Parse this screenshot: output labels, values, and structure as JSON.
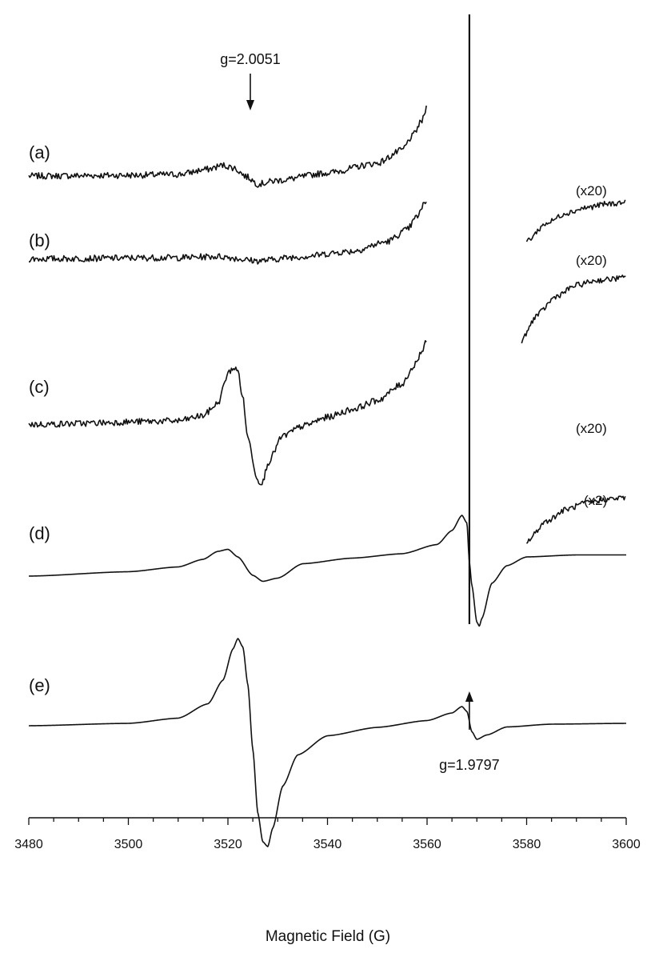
{
  "chart_data": {
    "type": "line",
    "title": "",
    "xlabel": "Magnetic Field (G)",
    "ylabel": "",
    "xlim": [
      3480,
      3600
    ],
    "x_ticks": [
      "3480",
      "3500",
      "3520",
      "3540",
      "3560",
      "3580",
      "3600"
    ],
    "grid": false,
    "y_axis_shown": false,
    "line_color": "#111111",
    "series": [
      {
        "name": "(a)",
        "noisy": true,
        "points": [
          [
            3480,
            -0.2
          ],
          [
            3500,
            0
          ],
          [
            3510,
            0.2
          ],
          [
            3516,
            1.5
          ],
          [
            3519,
            2.5
          ],
          [
            3521,
            1.9
          ],
          [
            3524,
            -0.5
          ],
          [
            3526,
            -2.2
          ],
          [
            3530,
            -1.3
          ],
          [
            3540,
            0.6
          ],
          [
            3550,
            3.0
          ],
          [
            3555,
            6.3
          ],
          [
            3557,
            9.7
          ],
          [
            3559,
            13.6
          ],
          [
            3560,
            17.3
          ]
        ]
      },
      {
        "name": "(b)",
        "noisy": true,
        "points": [
          [
            3480,
            -0.1
          ],
          [
            3510,
            0.2
          ],
          [
            3518,
            0.5
          ],
          [
            3526,
            -0.6
          ],
          [
            3534,
            0.4
          ],
          [
            3545,
            1.8
          ],
          [
            3552,
            4.2
          ],
          [
            3556,
            7.2
          ],
          [
            3558,
            10.5
          ],
          [
            3560,
            14.8
          ]
        ]
      },
      {
        "name": "(c)",
        "noisy": true,
        "points": [
          [
            3480,
            -0.1
          ],
          [
            3510,
            0.8
          ],
          [
            3515,
            2.1
          ],
          [
            3518,
            5.2
          ],
          [
            3520,
            12.6
          ],
          [
            3521,
            14.1
          ],
          [
            3522,
            13.3
          ],
          [
            3523,
            6.5
          ],
          [
            3524,
            -3.5
          ],
          [
            3526,
            -14.1
          ],
          [
            3527,
            -14.6
          ],
          [
            3528,
            -9.7
          ],
          [
            3531,
            -3.0
          ],
          [
            3535,
            -0.5
          ],
          [
            3540,
            1.7
          ],
          [
            3545,
            3.7
          ],
          [
            3550,
            5.9
          ],
          [
            3555,
            10.0
          ],
          [
            3557,
            13.9
          ],
          [
            3559,
            18.2
          ],
          [
            3560,
            20.9
          ]
        ]
      },
      {
        "name": "(d)",
        "noisy": false,
        "points": [
          [
            3480,
            0
          ],
          [
            3500,
            1.1
          ],
          [
            3510,
            2.3
          ],
          [
            3515,
            4.2
          ],
          [
            3518,
            6.2
          ],
          [
            3520,
            6.7
          ],
          [
            3522,
            4.8
          ],
          [
            3525,
            0.2
          ],
          [
            3527,
            -1.3
          ],
          [
            3530,
            -0.5
          ],
          [
            3535,
            3.1
          ],
          [
            3545,
            4.5
          ],
          [
            3555,
            5.6
          ],
          [
            3562,
            7.9
          ],
          [
            3565,
            11.4
          ],
          [
            3567,
            15.2
          ],
          [
            3568,
            13.3
          ],
          [
            3568.5,
            3.5
          ],
          [
            3569,
            -2.3
          ],
          [
            3570,
            -11.5
          ],
          [
            3570.5,
            -12.5
          ],
          [
            3571,
            -10.6
          ],
          [
            3573,
            -1.8
          ],
          [
            3576,
            2.6
          ],
          [
            3580,
            4.8
          ],
          [
            3590,
            5.3
          ],
          [
            3600,
            5.3
          ]
        ]
      },
      {
        "name": "(e)",
        "noisy": false,
        "points": [
          [
            3480,
            0
          ],
          [
            3500,
            0.6
          ],
          [
            3510,
            1.9
          ],
          [
            3516,
            5.5
          ],
          [
            3519,
            11.4
          ],
          [
            3521,
            19.2
          ],
          [
            3522,
            21.8
          ],
          [
            3523,
            19.7
          ],
          [
            3524,
            10.3
          ],
          [
            3525,
            -5.9
          ],
          [
            3526,
            -21.8
          ],
          [
            3527,
            -29.0
          ],
          [
            3528,
            -30.2
          ],
          [
            3529,
            -25.6
          ],
          [
            3531,
            -15.1
          ],
          [
            3534,
            -7.3
          ],
          [
            3540,
            -2.5
          ],
          [
            3550,
            -0.4
          ],
          [
            3560,
            1.3
          ],
          [
            3565,
            3.2
          ],
          [
            3567,
            4.8
          ],
          [
            3568,
            3.6
          ],
          [
            3569,
            -1.5
          ],
          [
            3570,
            -3.4
          ],
          [
            3572,
            -2.3
          ],
          [
            3576,
            -0.3
          ],
          [
            3585,
            0.4
          ],
          [
            3600,
            0.6
          ]
        ]
      }
    ],
    "scaled_segments": [
      {
        "name": "(a) (x20)",
        "points": [
          [
            3580,
            4.4
          ],
          [
            3584,
            8.8
          ],
          [
            3588,
            11.4
          ],
          [
            3592,
            12.7
          ],
          [
            3596,
            13.6
          ],
          [
            3600,
            14.0
          ]
        ]
      },
      {
        "name": "(c) (x20)",
        "points": [
          [
            3579,
            -0.5
          ],
          [
            3582,
            5.8
          ],
          [
            3586,
            10.6
          ],
          [
            3590,
            13.3
          ],
          [
            3594,
            14.5
          ],
          [
            3600,
            15.2
          ]
        ]
      },
      {
        "name": "(d) (x20)",
        "points": [
          [
            3580,
            8.6
          ],
          [
            3584,
            13.8
          ],
          [
            3588,
            16.7
          ],
          [
            3592,
            18.3
          ],
          [
            3596,
            19.2
          ],
          [
            3600,
            19.6
          ]
        ]
      }
    ],
    "sharp_line": {
      "x": 3568.5,
      "top": 60,
      "bottom": -12
    },
    "annotations": {
      "g1": {
        "text": "g=2.0051",
        "x": 3524.5
      },
      "g2": {
        "text": "g=1.9797",
        "x": 3568.5
      }
    },
    "scale_labels": [
      "(x20)",
      "(x20)",
      "(x20)",
      "(x2)"
    ]
  }
}
